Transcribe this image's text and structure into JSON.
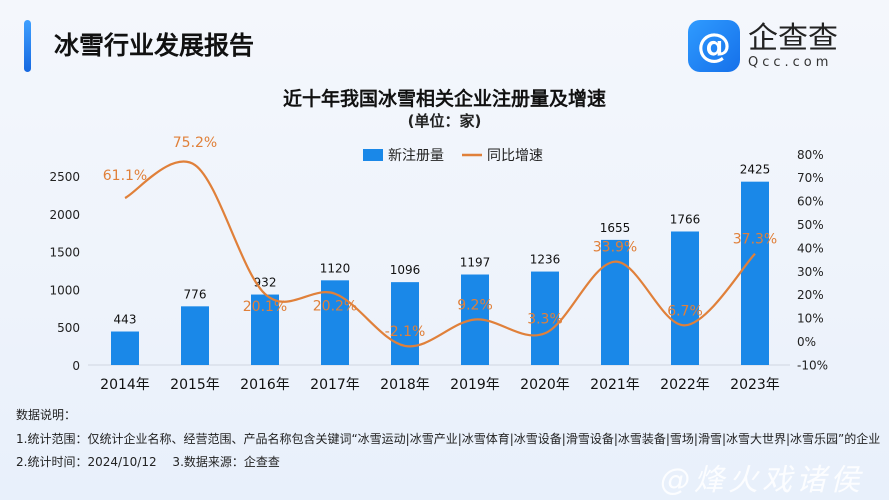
{
  "header": {
    "title": "冰雪行业发展报告"
  },
  "logo": {
    "cn": "企查查",
    "en": "Qcc.com",
    "icon": "qcc-logo-icon"
  },
  "chart_data": {
    "type": "bar+line",
    "title": "近十年我国冰雪相关企业注册量及增速",
    "subtitle": "(单位：家)",
    "categories": [
      "2014年",
      "2015年",
      "2016年",
      "2017年",
      "2018年",
      "2019年",
      "2020年",
      "2021年",
      "2022年",
      "2023年"
    ],
    "series": [
      {
        "name": "新注册量",
        "type": "bar",
        "axis": "left",
        "color": "#1a88e8",
        "values": [
          443,
          776,
          932,
          1120,
          1096,
          1197,
          1236,
          1655,
          1766,
          2425
        ],
        "labels": [
          "443",
          "776",
          "932",
          "1120",
          "1096",
          "1197",
          "1236",
          "1655",
          "1766",
          "2425"
        ]
      },
      {
        "name": "同比增速",
        "type": "line",
        "axis": "right",
        "color": "#e0803a",
        "values": [
          61.1,
          75.2,
          20.1,
          20.2,
          -2.1,
          9.2,
          3.3,
          33.9,
          6.7,
          37.3
        ],
        "labels": [
          "61.1%",
          "75.2%",
          "20.1%",
          "20.2%",
          "-2.1%",
          "9.2%",
          "3.3%",
          "33.9%",
          "6.7%",
          "37.3%"
        ]
      }
    ],
    "y_left": {
      "range": [
        0,
        2500
      ],
      "ticks": [
        "0",
        "500",
        "1000",
        "1500",
        "2000",
        "2500"
      ]
    },
    "y_right": {
      "range": [
        -10,
        80
      ],
      "ticks": [
        "-10%",
        "0%",
        "10%",
        "20%",
        "30%",
        "40%",
        "50%",
        "60%",
        "70%",
        "80%"
      ]
    },
    "grid": false,
    "legend": "top-center"
  },
  "notes": {
    "heading": "数据说明：",
    "line1": "1.统计范围：仅统计企业名称、经营范围、产品名称包含关键词“冰雪运动|冰雪产业|冰雪体育|冰雪设备|滑雪设备|冰雪装备|雪场|滑雪|冰雪大世界|冰雪乐园”的企业",
    "line2": "2.统计时间：2024/10/12　 3.数据来源：企查查"
  },
  "watermark": "@烽火戏诸侯"
}
